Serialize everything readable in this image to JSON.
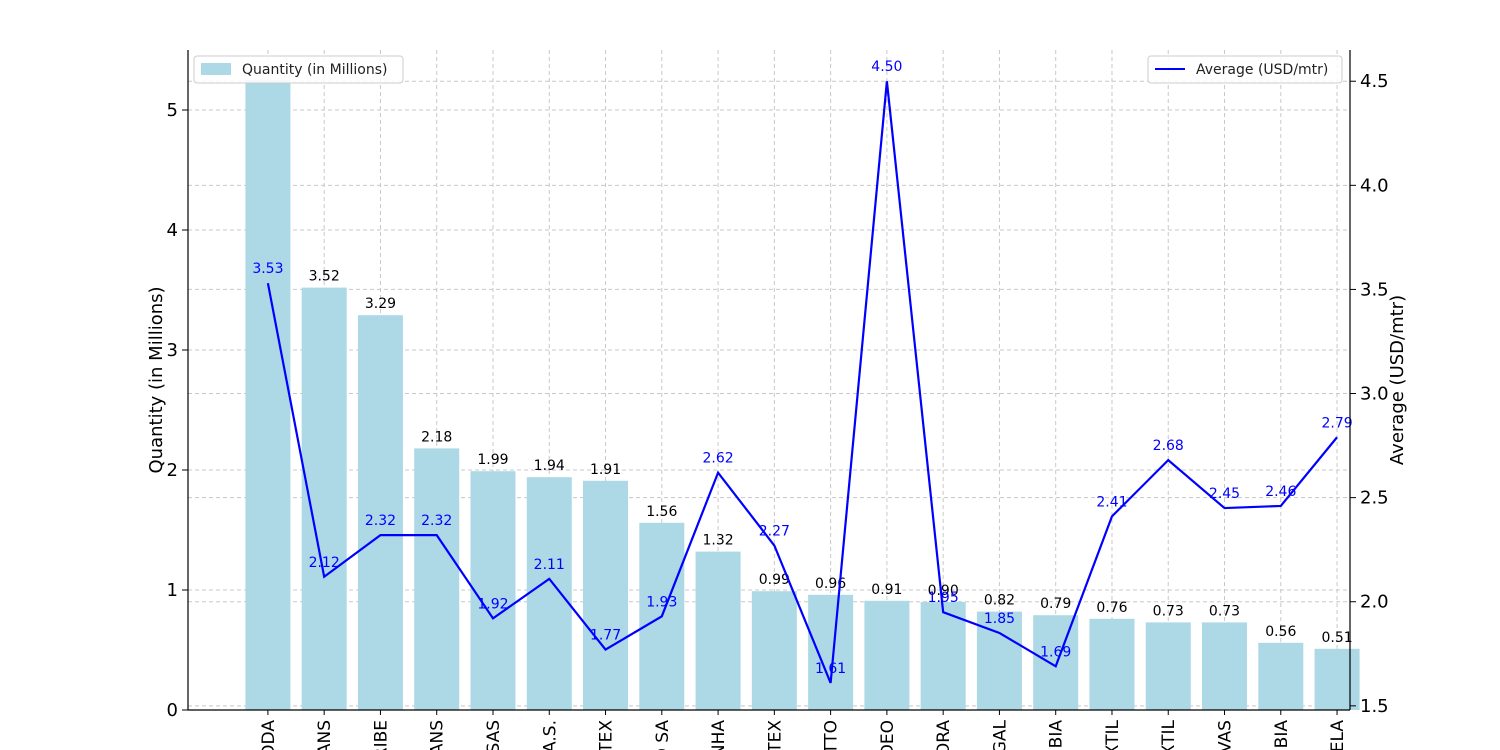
{
  "chart_data": {
    "type": "bar",
    "categories": [
      "ODA",
      "ANS",
      "RIBE",
      "ANS",
      "SAS",
      "A.S.",
      "TEX",
      "O SA",
      "NHA",
      "TEX",
      "TTO",
      "DEO",
      "ORA",
      "GAL",
      "MBIA",
      "XTIL",
      "XTIL",
      "VAS",
      "MBIA",
      "ELA"
    ],
    "series": [
      {
        "name": "Quantity (in Millions)",
        "type": "bar",
        "axis": "left",
        "color": "#add8e6",
        "values": [
          5.25,
          3.52,
          3.29,
          2.18,
          1.99,
          1.94,
          1.91,
          1.56,
          1.32,
          0.99,
          0.96,
          0.91,
          0.9,
          0.82,
          0.79,
          0.76,
          0.73,
          0.73,
          0.56,
          0.51
        ],
        "labels": [
          "",
          "3.52",
          "3.29",
          "2.18",
          "1.99",
          "1.94",
          "1.91",
          "1.56",
          "1.32",
          "0.99",
          "0.96",
          "0.91",
          "0.90",
          "0.82",
          "0.79",
          "0.76",
          "0.73",
          "0.73",
          "0.56",
          "0.51"
        ]
      },
      {
        "name": "Average (USD/mtr)",
        "type": "line",
        "axis": "right",
        "color": "#0000ff",
        "values": [
          3.53,
          2.12,
          2.32,
          2.32,
          1.92,
          2.11,
          1.77,
          1.93,
          2.62,
          2.27,
          1.61,
          4.5,
          1.95,
          1.85,
          1.69,
          2.41,
          2.68,
          2.45,
          2.46,
          2.79
        ],
        "labels": [
          "3.53",
          "2.12",
          "2.32",
          "2.32",
          "1.92",
          "2.11",
          "1.77",
          "1.93",
          "2.62",
          "2.27",
          "1.61",
          "4.50",
          "1.95",
          "1.85",
          "1.69",
          "2.41",
          "2.68",
          "2.45",
          "2.46",
          "2.79"
        ]
      }
    ],
    "ylabel": "Quantity (in Millions)",
    "y2label": "Average (USD/mtr)",
    "ylim": [
      0,
      5.5
    ],
    "y2lim": [
      1.48,
      4.65
    ],
    "yticks": [
      "0",
      "1",
      "2",
      "3",
      "4",
      "5"
    ],
    "y2ticks": [
      "1.5",
      "2.0",
      "2.5",
      "3.0",
      "3.5",
      "4.0",
      "4.5"
    ],
    "grid": true,
    "legend_bar": "top-left",
    "legend_line": "top-right"
  }
}
